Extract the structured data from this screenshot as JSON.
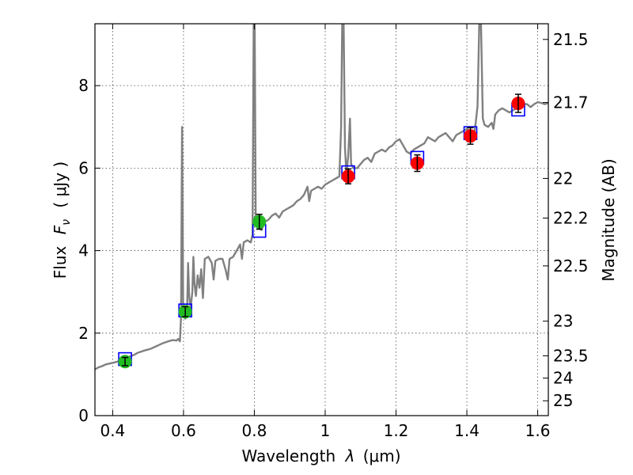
{
  "chart_data": {
    "type": "line",
    "xlabel": "Wavelength",
    "xlabel_symbol": "λ",
    "xlabel_unit": "(μm)",
    "ylabel": "Flux",
    "ylabel_symbol": "F",
    "ylabel_symbol_sub": "ν",
    "ylabel_unit": "( μJy )",
    "ylabel_right": "Magnitude (AB)",
    "xlim": [
      0.35,
      1.63
    ],
    "ylim": [
      0,
      9.5
    ],
    "grid": true,
    "x_ticks": [
      0.4,
      0.6,
      0.8,
      1.0,
      1.2,
      1.4,
      1.6
    ],
    "x_tick_labels": [
      "0.4",
      "0.6",
      "0.8",
      "1",
      "1.2",
      "1.4",
      "1.6"
    ],
    "y_ticks": [
      0,
      2,
      4,
      6,
      8
    ],
    "y_tick_labels": [
      "0",
      "2",
      "4",
      "6",
      "8"
    ],
    "right_ticks": [
      {
        "flux": 9.12,
        "label": "21.5"
      },
      {
        "flux": 7.59,
        "label": "21.7"
      },
      {
        "flux": 5.75,
        "label": "22"
      },
      {
        "flux": 4.79,
        "label": "22.2"
      },
      {
        "flux": 3.63,
        "label": "22.5"
      },
      {
        "flux": 2.29,
        "label": "23"
      },
      {
        "flux": 1.45,
        "label": "23.5"
      },
      {
        "flux": 0.91,
        "label": "24"
      },
      {
        "flux": 0.36,
        "label": "25"
      }
    ],
    "colors": {
      "model": "#808080",
      "model_phot": "#0000ff",
      "obs_optical": "#22bb22",
      "obs_nir": "#ff0000",
      "errorbar": "#000000"
    },
    "model_spectrum": [
      [
        0.35,
        1.12
      ],
      [
        0.36,
        1.17
      ],
      [
        0.37,
        1.2
      ],
      [
        0.38,
        1.24
      ],
      [
        0.39,
        1.26
      ],
      [
        0.4,
        1.28
      ],
      [
        0.41,
        1.3
      ],
      [
        0.42,
        1.33
      ],
      [
        0.43,
        1.36
      ],
      [
        0.44,
        1.4
      ],
      [
        0.45,
        1.44
      ],
      [
        0.46,
        1.47
      ],
      [
        0.47,
        1.52
      ],
      [
        0.48,
        1.55
      ],
      [
        0.49,
        1.58
      ],
      [
        0.5,
        1.6
      ],
      [
        0.51,
        1.63
      ],
      [
        0.52,
        1.67
      ],
      [
        0.53,
        1.71
      ],
      [
        0.54,
        1.75
      ],
      [
        0.55,
        1.78
      ],
      [
        0.56,
        1.81
      ],
      [
        0.57,
        1.83
      ],
      [
        0.58,
        1.82
      ],
      [
        0.585,
        1.86
      ],
      [
        0.59,
        1.8
      ],
      [
        0.593,
        2.4
      ],
      [
        0.596,
        7.0
      ],
      [
        0.599,
        2.6
      ],
      [
        0.602,
        2.4
      ],
      [
        0.605,
        2.35
      ],
      [
        0.61,
        2.5
      ],
      [
        0.613,
        3.7
      ],
      [
        0.616,
        2.9
      ],
      [
        0.62,
        2.6
      ],
      [
        0.625,
        3.0
      ],
      [
        0.628,
        3.85
      ],
      [
        0.631,
        3.2
      ],
      [
        0.635,
        2.9
      ],
      [
        0.64,
        3.4
      ],
      [
        0.645,
        3.1
      ],
      [
        0.65,
        3.55
      ],
      [
        0.655,
        2.85
      ],
      [
        0.66,
        3.8
      ],
      [
        0.67,
        3.85
      ],
      [
        0.68,
        3.7
      ],
      [
        0.685,
        3.3
      ],
      [
        0.69,
        3.75
      ],
      [
        0.7,
        3.8
      ],
      [
        0.71,
        3.8
      ],
      [
        0.72,
        3.5
      ],
      [
        0.725,
        3.3
      ],
      [
        0.73,
        3.8
      ],
      [
        0.74,
        3.85
      ],
      [
        0.75,
        4.0
      ],
      [
        0.76,
        4.15
      ],
      [
        0.765,
        3.8
      ],
      [
        0.77,
        4.2
      ],
      [
        0.78,
        4.25
      ],
      [
        0.79,
        4.2
      ],
      [
        0.795,
        4.4
      ],
      [
        0.798,
        9.5
      ],
      [
        0.801,
        9.5
      ],
      [
        0.804,
        4.6
      ],
      [
        0.81,
        4.55
      ],
      [
        0.82,
        4.5
      ],
      [
        0.83,
        4.7
      ],
      [
        0.84,
        4.75
      ],
      [
        0.85,
        4.85
      ],
      [
        0.86,
        4.9
      ],
      [
        0.87,
        4.8
      ],
      [
        0.88,
        4.95
      ],
      [
        0.89,
        5.0
      ],
      [
        0.9,
        5.05
      ],
      [
        0.91,
        5.1
      ],
      [
        0.92,
        5.2
      ],
      [
        0.93,
        5.25
      ],
      [
        0.94,
        5.35
      ],
      [
        0.95,
        5.55
      ],
      [
        0.955,
        5.2
      ],
      [
        0.96,
        5.45
      ],
      [
        0.97,
        5.5
      ],
      [
        0.98,
        5.55
      ],
      [
        0.99,
        5.5
      ],
      [
        1.0,
        5.6
      ],
      [
        1.01,
        5.65
      ],
      [
        1.02,
        5.7
      ],
      [
        1.03,
        5.75
      ],
      [
        1.04,
        5.8
      ],
      [
        1.045,
        7.0
      ],
      [
        1.048,
        9.5
      ],
      [
        1.052,
        9.5
      ],
      [
        1.056,
        6.5
      ],
      [
        1.06,
        5.85
      ],
      [
        1.065,
        6.3
      ],
      [
        1.07,
        7.2
      ],
      [
        1.073,
        6.1
      ],
      [
        1.08,
        6.0
      ],
      [
        1.09,
        6.0
      ],
      [
        1.1,
        6.1
      ],
      [
        1.11,
        6.2
      ],
      [
        1.12,
        6.25
      ],
      [
        1.13,
        6.15
      ],
      [
        1.14,
        6.35
      ],
      [
        1.15,
        6.4
      ],
      [
        1.16,
        6.45
      ],
      [
        1.17,
        6.4
      ],
      [
        1.18,
        6.5
      ],
      [
        1.19,
        6.55
      ],
      [
        1.2,
        6.65
      ],
      [
        1.21,
        6.7
      ],
      [
        1.22,
        6.55
      ],
      [
        1.23,
        6.4
      ],
      [
        1.24,
        6.35
      ],
      [
        1.25,
        6.45
      ],
      [
        1.26,
        6.5
      ],
      [
        1.27,
        6.55
      ],
      [
        1.28,
        6.6
      ],
      [
        1.29,
        6.75
      ],
      [
        1.3,
        6.7
      ],
      [
        1.31,
        6.65
      ],
      [
        1.32,
        6.75
      ],
      [
        1.33,
        6.8
      ],
      [
        1.34,
        6.85
      ],
      [
        1.35,
        6.75
      ],
      [
        1.36,
        6.65
      ],
      [
        1.37,
        6.8
      ],
      [
        1.38,
        6.85
      ],
      [
        1.39,
        6.9
      ],
      [
        1.4,
        6.95
      ],
      [
        1.41,
        6.9
      ],
      [
        1.415,
        6.7
      ],
      [
        1.42,
        6.8
      ],
      [
        1.425,
        7.1
      ],
      [
        1.43,
        7.5
      ],
      [
        1.435,
        9.5
      ],
      [
        1.44,
        9.5
      ],
      [
        1.445,
        7.2
      ],
      [
        1.45,
        7.05
      ],
      [
        1.46,
        7.0
      ],
      [
        1.47,
        7.1
      ],
      [
        1.475,
        6.95
      ],
      [
        1.48,
        7.3
      ],
      [
        1.49,
        7.4
      ],
      [
        1.5,
        7.45
      ],
      [
        1.51,
        7.4
      ],
      [
        1.52,
        7.35
      ],
      [
        1.53,
        7.4
      ],
      [
        1.54,
        7.45
      ],
      [
        1.55,
        7.48
      ],
      [
        1.56,
        7.55
      ],
      [
        1.57,
        7.55
      ],
      [
        1.58,
        7.48
      ],
      [
        1.59,
        7.55
      ],
      [
        1.6,
        7.6
      ],
      [
        1.61,
        7.58
      ],
      [
        1.62,
        7.55
      ],
      [
        1.63,
        7.58
      ]
    ],
    "model_photometry": [
      {
        "x": 0.435,
        "y": 1.37
      },
      {
        "x": 0.605,
        "y": 2.55
      },
      {
        "x": 0.814,
        "y": 4.48
      },
      {
        "x": 1.065,
        "y": 5.9
      },
      {
        "x": 1.26,
        "y": 6.25
      },
      {
        "x": 1.41,
        "y": 6.85
      },
      {
        "x": 1.545,
        "y": 7.42
      }
    ],
    "observed_optical": [
      {
        "x": 0.435,
        "y": 1.31,
        "err": 0.1
      },
      {
        "x": 0.605,
        "y": 2.52,
        "err": 0.12
      },
      {
        "x": 0.814,
        "y": 4.7,
        "err": 0.18
      }
    ],
    "observed_nir": [
      {
        "x": 1.065,
        "y": 5.8,
        "err": 0.18
      },
      {
        "x": 1.26,
        "y": 6.12,
        "err": 0.2
      },
      {
        "x": 1.41,
        "y": 6.78,
        "err": 0.2
      },
      {
        "x": 1.545,
        "y": 7.57,
        "err": 0.22
      }
    ]
  }
}
